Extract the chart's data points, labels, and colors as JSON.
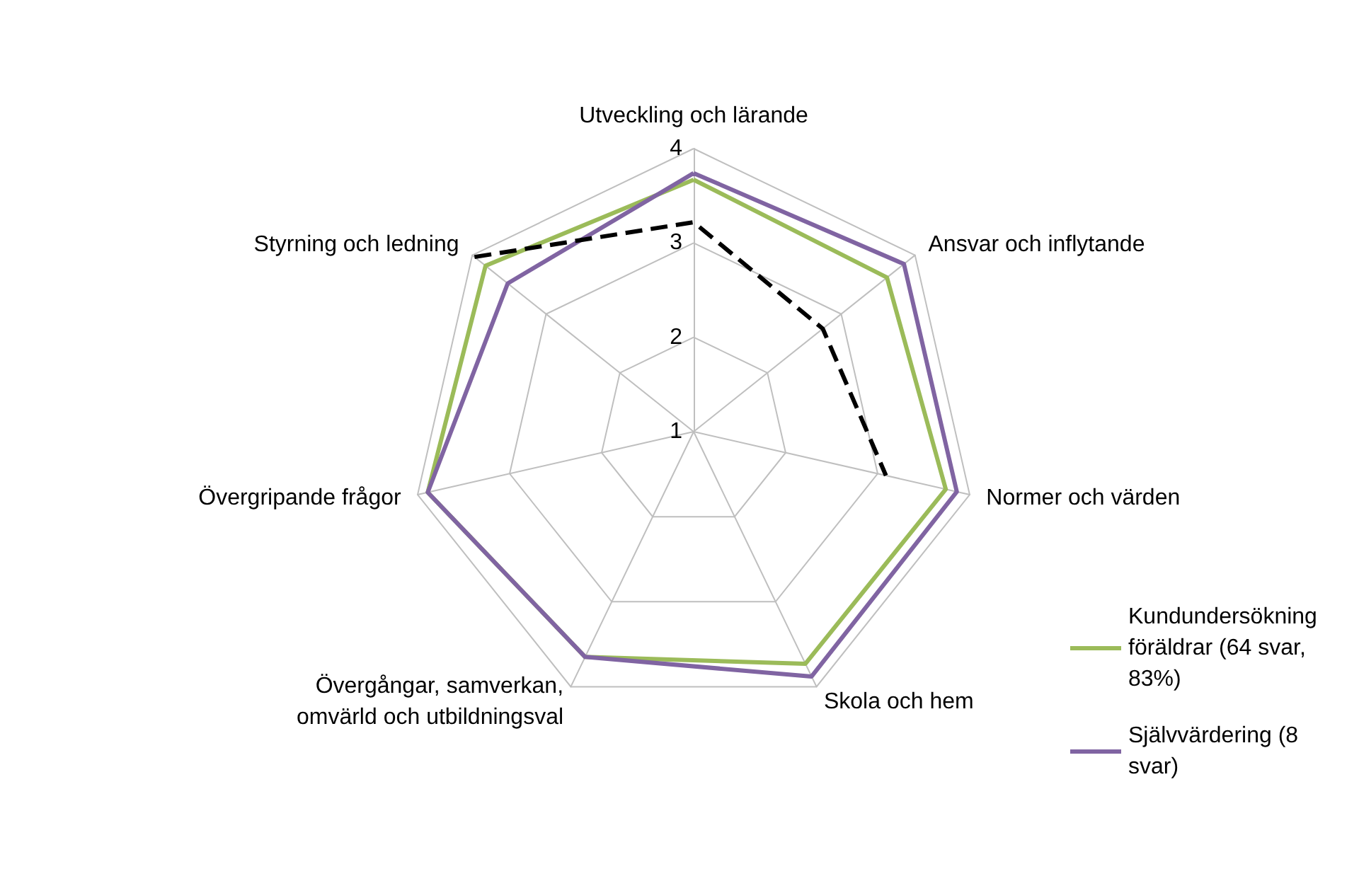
{
  "chart_data": {
    "type": "radar",
    "categories": [
      "Utveckling och lärande",
      "Ansvar och inflytande",
      "Normer och värden",
      "Skola och hem",
      "Övergångar, samverkan, omvärld och utbildningsval",
      "Övergripande frågor",
      "Styrning och ledning"
    ],
    "series": [
      {
        "name": "Kundundersökning föräldrar (64 svar,83%)",
        "color": "#9bbb59",
        "values": [
          3.67,
          3.62,
          3.74,
          3.73,
          3.65,
          3.89,
          3.82
        ]
      },
      {
        "name": "Självvärdering (8 svar)",
        "color": "#8064a2",
        "values": [
          3.74,
          3.85,
          3.86,
          3.88,
          3.65,
          3.89,
          3.52
        ]
      },
      {
        "color": "#000000",
        "line_style": "dashed",
        "values": [
          3.22,
          2.75,
          3.09,
          null,
          null,
          null,
          3.97
        ]
      }
    ],
    "ylim": [
      1,
      4
    ],
    "yticks": [
      1,
      2,
      3,
      4
    ],
    "grid": true,
    "legend": "right",
    "marker": "none",
    "line_style": "solid"
  }
}
